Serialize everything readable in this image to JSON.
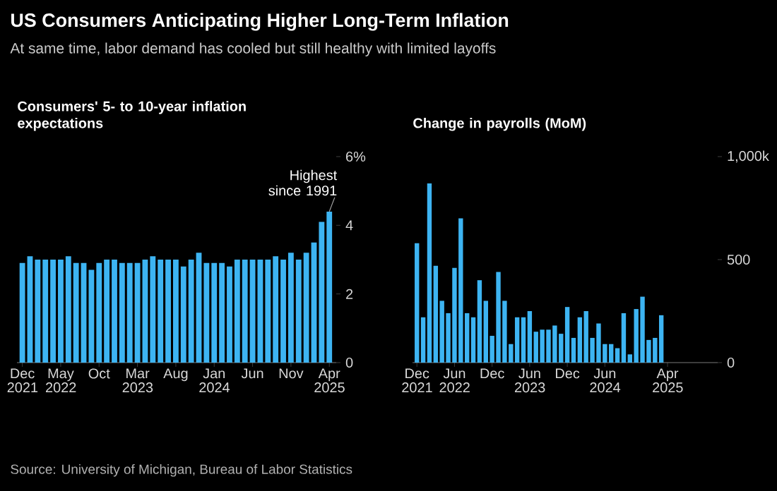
{
  "chart_data": [
    {
      "type": "bar",
      "title": "US Consumers Anticipating Higher Long-Term Inflation",
      "subtitle": "At same time, labor demand has cooled but still healthy with limited layoffs",
      "ylabel": "Consumers' 5- to 10-year inflation expectations",
      "categories": [
        "Dec 2021",
        null,
        null,
        null,
        null,
        "May 2022",
        null,
        null,
        null,
        null,
        "Oct",
        null,
        null,
        null,
        null,
        "Mar 2023",
        null,
        null,
        null,
        null,
        "Aug",
        null,
        null,
        null,
        null,
        "Jan 2024",
        null,
        null,
        null,
        null,
        "Jun",
        null,
        null,
        null,
        null,
        "Nov",
        null,
        null,
        null,
        null,
        "Apr 2025"
      ],
      "values": [
        2.9,
        3.1,
        3.0,
        3.0,
        3.0,
        3.0,
        3.1,
        2.9,
        2.9,
        2.7,
        2.9,
        3.0,
        3.0,
        2.9,
        2.9,
        2.9,
        3.0,
        3.1,
        3.0,
        3.0,
        3.0,
        2.8,
        3.0,
        3.2,
        2.9,
        2.9,
        2.9,
        2.8,
        3.0,
        3.0,
        3.0,
        3.0,
        3.0,
        3.1,
        3.0,
        3.2,
        3.0,
        3.2,
        3.5,
        4.1,
        4.4
      ],
      "color": "#3db4f2",
      "ylim": [
        0,
        6
      ],
      "yticks": [
        0,
        2,
        4,
        {
          "value": 6,
          "label": "6%"
        }
      ],
      "annotations": [
        {
          "text": "Highest since 1991",
          "x": "Apr 2025",
          "y": 4.4
        },
        "Source: University of Michigan, Bureau of Labor Statistics"
      ]
    },
    {
      "type": "bar",
      "ylabel": "Change in payrolls (MoM)",
      "categories": [
        "Dec 2021",
        null,
        null,
        null,
        null,
        null,
        "Jun 2022",
        null,
        null,
        null,
        null,
        null,
        "Dec",
        null,
        null,
        null,
        null,
        null,
        "Jun 2023",
        null,
        null,
        null,
        null,
        null,
        "Dec",
        null,
        null,
        null,
        null,
        null,
        "Jun 2024",
        null,
        null,
        null,
        null,
        null,
        null,
        null,
        null,
        null,
        "Apr 2025"
      ],
      "values": [
        580,
        220,
        870,
        470,
        300,
        240,
        460,
        700,
        240,
        220,
        400,
        300,
        130,
        440,
        300,
        90,
        220,
        220,
        250,
        150,
        160,
        160,
        180,
        140,
        270,
        120,
        220,
        250,
        120,
        190,
        90,
        90,
        70,
        240,
        40,
        260,
        320,
        110,
        120,
        230,
        null
      ],
      "color": "#3db4f2",
      "ylim": [
        0,
        1000
      ],
      "yticks": [
        0,
        500,
        {
          "value": 1000,
          "label": "1,000k"
        }
      ]
    }
  ]
}
